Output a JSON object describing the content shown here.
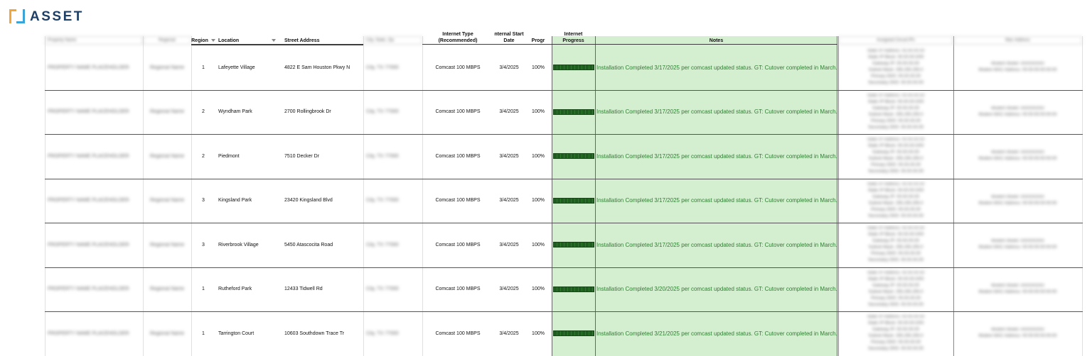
{
  "brand": {
    "logo_text": "ASSET"
  },
  "header": {
    "region": "Region",
    "location": "Location",
    "street": "Street Address",
    "internet_type_line1": "Internet Type",
    "internet_type_line2": "(Recommended)",
    "start_line1": "nternal Start",
    "start_line2": "Date",
    "progr": "Progr",
    "internet_progress_line1": "Internet",
    "internet_progress_line2": "Progress",
    "notes": "Notes"
  },
  "rows": [
    {
      "region": "1",
      "location": "Lafeyette Village",
      "street": "4822 E Sam Houston Pkwy N",
      "type": "Comcast 100 MBPS",
      "date": "3/4/2025",
      "pct": "100%",
      "progress": 1.0,
      "note": "Installation Completed 3/17/2025 per comcast updated status. GT: Cutover completed in March."
    },
    {
      "region": "2",
      "location": "Wyndham Park",
      "street": "2700 Rollingbrook Dr",
      "type": "Comcast 100 MBPS",
      "date": "3/4/2025",
      "pct": "100%",
      "progress": 1.0,
      "note": "Installation Completed 3/17/2025 per comcast updated status. GT: Cutover completed in March."
    },
    {
      "region": "2",
      "location": "Piedmont",
      "street": "7510 Decker Dr",
      "type": "Comcast 100 MBPS",
      "date": "3/4/2025",
      "pct": "100%",
      "progress": 1.0,
      "note": "Installation Completed  3/17/2025 per comcast updated status. GT: Cutover completed in March."
    },
    {
      "region": "3",
      "location": "Kingsland Park",
      "street": "23420 Kingsland Blvd",
      "type": "Comcast 100 MBPS",
      "date": "3/4/2025",
      "pct": "100%",
      "progress": 1.0,
      "note": "Installation Completed  3/17/2025 per comcast updated status. GT: Cutover completed in March."
    },
    {
      "region": "3",
      "location": "Riverbrook Village",
      "street": "5450 Atascocita Road",
      "type": "Comcast 100 MBPS",
      "date": "3/4/2025",
      "pct": "100%",
      "progress": 1.0,
      "note": "Installation Completed  3/17/2025 per comcast updated status. GT: Cutover completed in March."
    },
    {
      "region": "1",
      "location": "Rutheford Park",
      "street": "12433 Tidwell Rd",
      "type": "Comcast 100 MBPS",
      "date": "3/4/2025",
      "pct": "100%",
      "progress": 1.0,
      "note": "Installation Completed 3/20/2025 per comcast updated status. GT: Cutover completed in March."
    },
    {
      "region": "1",
      "location": "Tarrington Court",
      "street": "10603 Southdown Trace Tr",
      "type": "Comcast 100 MBPS",
      "date": "3/4/2025",
      "pct": "100%",
      "progress": 1.0,
      "note": "Installation Completed 3/21/2025 per comcast updated status. GT: Cutover completed in March."
    }
  ],
  "colors": {
    "notes_fill": "#d4efcf",
    "notes_text": "#2e7d32",
    "progress_bar": "#1f5c1f"
  }
}
